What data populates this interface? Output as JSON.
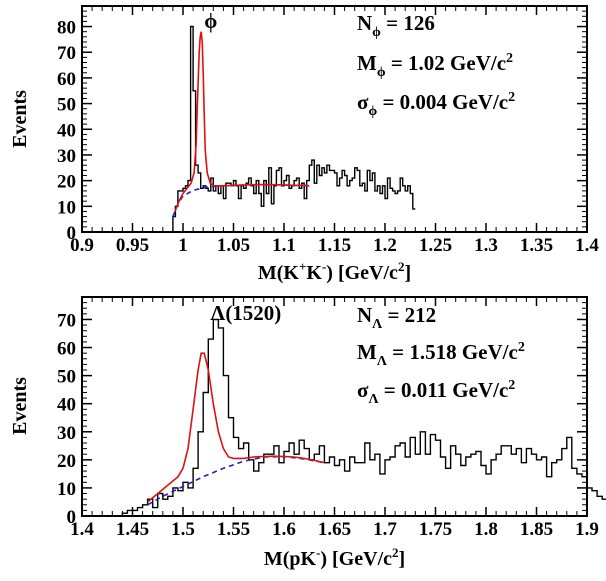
{
  "chart_data": [
    {
      "type": "histogram",
      "xlabel": {
        "main": "M(K",
        "sup1": "+",
        "mid": "K",
        "sup2": "-",
        "end": ") [GeV/c",
        "sup3": "2",
        "close": "]"
      },
      "ylabel": "Events",
      "xlim": [
        0.9,
        1.4
      ],
      "ylim": [
        0,
        88
      ],
      "xticks": [
        "0.9",
        "0.95",
        "1",
        "1.05",
        "1.1",
        "1.15",
        "1.2",
        "1.25",
        "1.3",
        "1.35",
        "1.4"
      ],
      "yticks": [
        "0",
        "10",
        "20",
        "30",
        "40",
        "50",
        "60",
        "70",
        "80"
      ],
      "peak_label": "ϕ",
      "peak_label_x": 1.021,
      "annotations": [
        {
          "sym": "N",
          "sub": "ϕ",
          "text": " = 126",
          "sup": ""
        },
        {
          "sym": "M",
          "sub": "ϕ",
          "text": " = 1.02 GeV/c",
          "sup": "2"
        },
        {
          "sym": "σ",
          "sub": "ϕ",
          "text": " = 0.004 GeV/c",
          "sup": "2"
        }
      ],
      "bin_start": 0.99,
      "bin_width": 0.0025,
      "bin_counts": [
        6,
        10,
        16,
        16,
        17,
        18,
        20,
        80,
        55,
        26,
        23,
        17,
        18,
        17,
        16,
        21,
        16,
        18,
        15,
        18,
        13,
        19,
        19,
        18,
        20,
        18,
        13,
        18,
        17,
        19,
        21,
        18,
        15,
        20,
        15,
        10,
        20,
        15,
        25,
        11,
        18,
        24,
        25,
        18,
        20,
        22,
        17,
        18,
        20,
        21,
        17,
        19,
        13,
        20,
        26,
        28,
        19,
        26,
        22,
        25,
        23,
        26,
        24,
        24,
        23,
        18,
        21,
        24,
        22,
        18,
        20,
        21,
        25,
        24,
        18,
        19,
        16,
        24,
        20,
        23,
        16,
        18,
        15,
        18,
        13,
        21,
        17,
        16,
        15,
        16,
        21,
        18,
        16,
        18,
        15,
        9
      ],
      "fit_total": {
        "x": [
          0.992,
          0.996,
          1.0,
          1.004,
          1.008,
          1.011,
          1.013,
          1.015,
          1.016,
          1.017,
          1.018,
          1.019,
          1.02,
          1.021,
          1.022,
          1.024,
          1.027,
          1.031,
          1.04,
          1.05,
          1.06,
          1.07,
          1.08,
          1.09,
          1.1,
          1.11,
          1.12,
          1.125
        ],
        "y": [
          8,
          12,
          15,
          17,
          19,
          23,
          34,
          58,
          70,
          76,
          78,
          74,
          62,
          46,
          32,
          23,
          19,
          18,
          18,
          18.2,
          18.3,
          18.4,
          18.4,
          18.4,
          18.3,
          18.2,
          18.1,
          18
        ]
      },
      "fit_background": {
        "x": [
          0.99,
          0.995,
          1.0,
          1.01,
          1.02,
          1.03,
          1.04,
          1.05,
          1.06,
          1.07,
          1.08,
          1.09,
          1.1,
          1.11,
          1.12,
          1.125
        ],
        "y": [
          6,
          11,
          14,
          16.2,
          17.2,
          17.7,
          18,
          18.2,
          18.3,
          18.4,
          18.4,
          18.4,
          18.3,
          18.2,
          18.1,
          18
        ]
      }
    },
    {
      "type": "histogram",
      "xlabel": {
        "main": "M(pK",
        "sup1": "-",
        "end": ") [GeV/c",
        "sup3": "2",
        "close": "]"
      },
      "ylabel": "Events",
      "xlim": [
        1.4,
        1.9
      ],
      "ylim": [
        0,
        78
      ],
      "xticks": [
        "1.4",
        "1.45",
        "1.5",
        "1.55",
        "1.6",
        "1.65",
        "1.7",
        "1.75",
        "1.8",
        "1.85",
        "1.9"
      ],
      "yticks": [
        "0",
        "10",
        "20",
        "30",
        "40",
        "50",
        "60",
        "70"
      ],
      "peak_label": "Λ(1520)",
      "peak_label_x": 1.527,
      "annotations": [
        {
          "sym": "N",
          "sub": "Λ",
          "text": " = 212",
          "sup": ""
        },
        {
          "sym": "M",
          "sub": "Λ",
          "text": " = 1.518 GeV/c",
          "sup": "2"
        },
        {
          "sym": "σ",
          "sub": "Λ",
          "text": " = 0.011 GeV/c",
          "sup": "2"
        }
      ],
      "bin_start": 1.4,
      "bin_width": 0.005,
      "bin_counts": [
        0,
        0,
        0,
        0,
        0,
        0,
        0,
        0,
        1,
        2,
        2,
        3,
        4,
        6,
        3,
        8,
        6,
        7,
        10,
        9,
        12,
        10,
        17,
        30,
        44,
        63,
        70,
        67,
        50,
        35,
        28,
        24,
        26,
        20,
        16,
        19,
        22,
        22,
        25,
        19,
        23,
        26,
        22,
        27,
        24,
        20,
        22,
        25,
        19,
        21,
        18,
        20,
        16,
        21,
        19,
        19,
        26,
        20,
        22,
        15,
        20,
        21,
        25,
        26,
        21,
        28,
        22,
        30,
        22,
        29,
        27,
        21,
        17,
        25,
        22,
        18,
        21,
        22,
        23,
        18,
        15,
        20,
        22,
        25,
        25,
        22,
        24,
        19,
        24,
        22,
        20,
        21,
        14,
        19,
        20,
        24,
        28,
        17,
        15,
        14,
        10,
        9,
        7,
        6,
        6,
        5
      ],
      "fit_total": {
        "x": [
          1.465,
          1.475,
          1.485,
          1.495,
          1.5,
          1.505,
          1.51,
          1.515,
          1.518,
          1.521,
          1.525,
          1.53,
          1.535,
          1.54,
          1.545,
          1.55,
          1.56,
          1.57,
          1.58,
          1.59,
          1.6,
          1.61,
          1.62,
          1.63,
          1.64
        ],
        "y": [
          5,
          8,
          11,
          14,
          17,
          24,
          38,
          52,
          58,
          58,
          52,
          40,
          30,
          24,
          21,
          20.5,
          20.5,
          21,
          21.2,
          21.3,
          21.2,
          21,
          20.5,
          19.8,
          19
        ]
      },
      "fit_background": {
        "x": [
          1.465,
          1.48,
          1.5,
          1.52,
          1.54,
          1.56,
          1.58,
          1.6,
          1.62,
          1.64
        ],
        "y": [
          4,
          7,
          10.5,
          14,
          17,
          19.5,
          21,
          21.2,
          20.3,
          19
        ]
      }
    }
  ]
}
